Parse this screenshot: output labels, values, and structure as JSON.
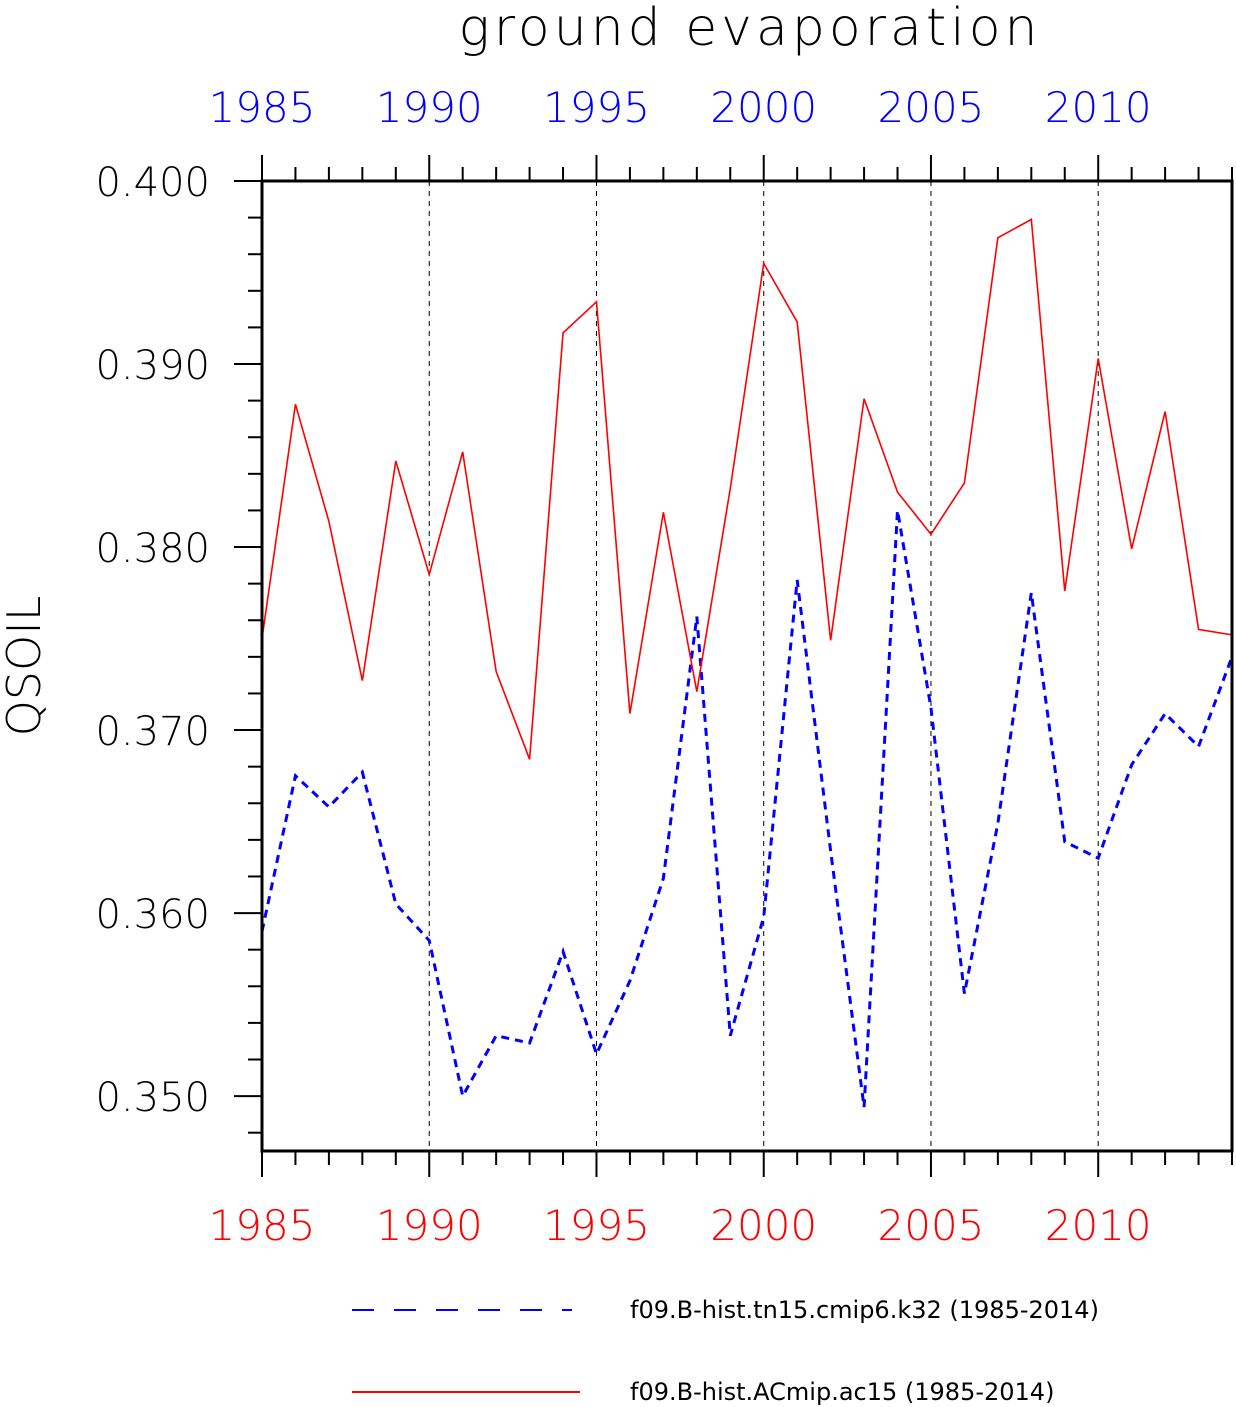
{
  "chart_data": {
    "type": "line",
    "title": "ground evaporation",
    "ylabel": "QSOIL",
    "xlabel": "",
    "xlim": [
      1985,
      2014
    ],
    "ylim": [
      0.347,
      0.4
    ],
    "yticks": [
      "0.400",
      "0.390",
      "0.380",
      "0.370",
      "0.360",
      "0.350"
    ],
    "ytick_values": [
      0.4,
      0.39,
      0.38,
      0.37,
      0.36,
      0.35
    ],
    "xticks": [
      "1985",
      "1990",
      "1995",
      "2000",
      "2005",
      "2010"
    ],
    "xtick_values": [
      1985,
      1990,
      1995,
      2000,
      2005,
      2010
    ],
    "x": [
      1985,
      1986,
      1987,
      1988,
      1989,
      1990,
      1991,
      1992,
      1993,
      1994,
      1995,
      1996,
      1997,
      1998,
      1999,
      2000,
      2001,
      2002,
      2003,
      2004,
      2005,
      2006,
      2007,
      2008,
      2009,
      2010,
      2011,
      2012,
      2013,
      2014
    ],
    "grid": "vertical dashed at major x ticks",
    "legend_position": "bottom",
    "series": [
      {
        "name": "f09.B-hist.tn15.cmip6.k32 (1985-2014)",
        "color": "#0000ff",
        "style": "dashed",
        "values": [
          0.359,
          0.3675,
          0.3658,
          0.3677,
          0.3605,
          0.3585,
          0.35,
          0.3533,
          0.3529,
          0.3579,
          0.3523,
          0.3563,
          0.3619,
          0.3762,
          0.3533,
          0.3598,
          0.3782,
          0.3634,
          0.3494,
          0.382,
          0.3712,
          0.3556,
          0.3649,
          0.3775,
          0.3639,
          0.363,
          0.3681,
          0.3709,
          0.3691,
          0.374
        ]
      },
      {
        "name": "f09.B-hist.ACmip.ac15 (1985-2014)",
        "color": "#ff0000",
        "style": "solid",
        "values": [
          0.375,
          0.3878,
          0.3814,
          0.3727,
          0.3847,
          0.3785,
          0.3852,
          0.3732,
          0.3684,
          0.3917,
          0.3934,
          0.3709,
          0.3819,
          0.3721,
          0.3832,
          0.3955,
          0.3923,
          0.3749,
          0.3881,
          0.383,
          0.3807,
          0.3835,
          0.3969,
          0.3979,
          0.3776,
          0.3903,
          0.3799,
          0.3874,
          0.3755,
          0.3752
        ]
      }
    ]
  }
}
